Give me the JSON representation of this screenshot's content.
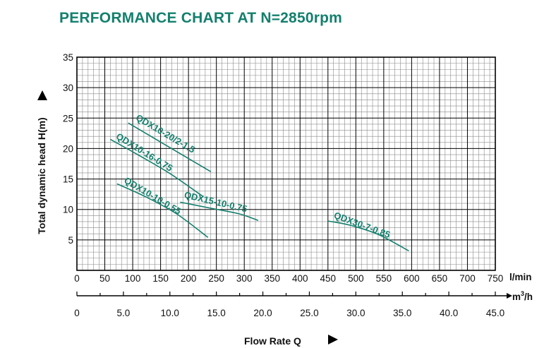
{
  "chart_data": {
    "type": "line",
    "title": "PERFORMANCE CHART AT N=2850rpm",
    "ylabel": "Total dynamic head H(m)",
    "xlabel": "Flow Rate Q",
    "x_unit": "l/min",
    "x2_unit_base": "m",
    "x2_unit_exp": "3",
    "x2_unit_tail": "/h",
    "ylim": [
      0,
      35
    ],
    "xlim": [
      0,
      750
    ],
    "x2lim": [
      0,
      45
    ],
    "grid": true,
    "y_ticks": [
      "5",
      "10",
      "15",
      "20",
      "25",
      "30",
      "35"
    ],
    "x_ticks": [
      "0",
      "50",
      "100",
      "150",
      "200",
      "250",
      "300",
      "350",
      "400",
      "450",
      "500",
      "550",
      "600",
      "650",
      "700",
      "750"
    ],
    "x2_ticks": [
      "0",
      "5.0",
      "10.0",
      "15.0",
      "20.0",
      "25.0",
      "30.0",
      "35.0",
      "40.0",
      "45.0"
    ],
    "line_color": "#14806e",
    "series": [
      {
        "name": "QDX10-20/2-1.5",
        "x": [
          92,
          240
        ],
        "y": [
          24.2,
          16.2
        ]
      },
      {
        "name": "QDX10-16-0.75",
        "x": [
          60,
          105,
          165,
          225
        ],
        "y": [
          21.5,
          19.2,
          16.0,
          12.2
        ]
      },
      {
        "name": "QDX10-10-0.55",
        "x": [
          72,
          125,
          180,
          235
        ],
        "y": [
          14.2,
          12.0,
          9.2,
          5.4
        ]
      },
      {
        "name": "QDX15-10-0.75",
        "x": [
          185,
          240,
          290,
          325
        ],
        "y": [
          11.2,
          10.2,
          9.3,
          8.2
        ]
      },
      {
        "name": "QDX30-7-0.85",
        "x": [
          450,
          490,
          540,
          595
        ],
        "y": [
          8.1,
          7.4,
          5.9,
          3.2
        ]
      }
    ]
  }
}
